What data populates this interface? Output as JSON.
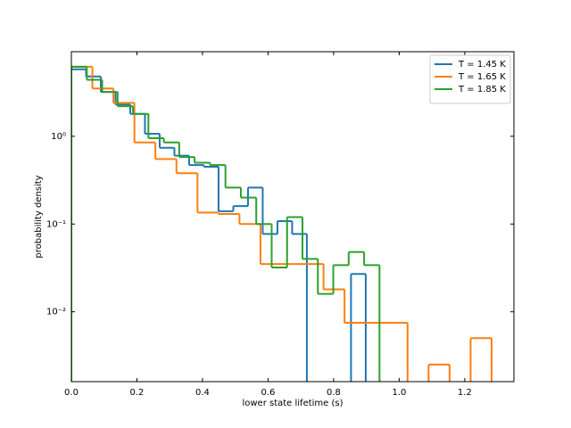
{
  "chart_data": {
    "type": "histogram",
    "xlabel": "lower state lifetime (s)",
    "ylabel": "probability density",
    "xlim": [
      0,
      1.35
    ],
    "ylim": [
      0.0016,
      9.2
    ],
    "log_y": true,
    "legend": "upper right",
    "xticks": [
      {
        "value": 0,
        "label": "0.0"
      },
      0.2,
      0.4,
      0.6,
      0.8,
      {
        "value": 1,
        "label": "1.0"
      },
      1.2
    ],
    "yticks": [
      {
        "value": 0.01,
        "label": "10⁻²"
      },
      {
        "value": 0.1,
        "label": "10⁻¹"
      },
      {
        "value": 1,
        "label": "10⁰"
      }
    ],
    "series": [
      {
        "name": "T = 1.45 K",
        "color": "#1f77b4",
        "bins": [
          0,
          0.0449,
          0.0898,
          0.1347,
          0.1796,
          0.2245,
          0.2694,
          0.3143,
          0.3592,
          0.4041,
          0.449,
          0.4939,
          0.5388,
          0.5837,
          0.6286,
          0.6735,
          0.7184,
          0.7633,
          0.8082,
          0.8531,
          0.898
        ],
        "values": [
          5.8,
          4.8,
          3.2,
          2.3,
          1.8,
          1.07,
          0.74,
          0.6,
          0.47,
          0.45,
          0.14,
          0.16,
          0.26,
          0.077,
          0.108,
          0.077,
          0,
          0,
          0,
          0.027
        ]
      },
      {
        "name": "T = 1.65 K",
        "color": "#ff7f0e",
        "bins": [
          0,
          0.0641,
          0.1282,
          0.1923,
          0.2564,
          0.3205,
          0.3846,
          0.4487,
          0.5128,
          0.5769,
          0.641,
          0.7051,
          0.7692,
          0.8333,
          0.8974,
          0.9615,
          1.0256,
          1.0897,
          1.1538,
          1.2179,
          1.282
        ],
        "values": [
          6.2,
          3.5,
          2.4,
          0.85,
          0.55,
          0.38,
          0.135,
          0.13,
          0.1,
          0.035,
          0.035,
          0.035,
          0.018,
          0.0075,
          0.0075,
          0.0075,
          0,
          0.0025,
          0,
          0.005
        ]
      },
      {
        "name": "T = 1.85 K",
        "color": "#2ca02c",
        "bins": [
          0,
          0.047,
          0.094,
          0.141,
          0.188,
          0.235,
          0.282,
          0.329,
          0.376,
          0.423,
          0.47,
          0.517,
          0.564,
          0.611,
          0.658,
          0.705,
          0.752,
          0.799,
          0.846,
          0.893,
          0.94
        ],
        "values": [
          6.2,
          4.4,
          3.2,
          2.2,
          1.8,
          0.95,
          0.85,
          0.58,
          0.5,
          0.47,
          0.26,
          0.2,
          0.1,
          0.032,
          0.12,
          0.04,
          0.016,
          0.034,
          0.048,
          0.034
        ]
      }
    ]
  }
}
